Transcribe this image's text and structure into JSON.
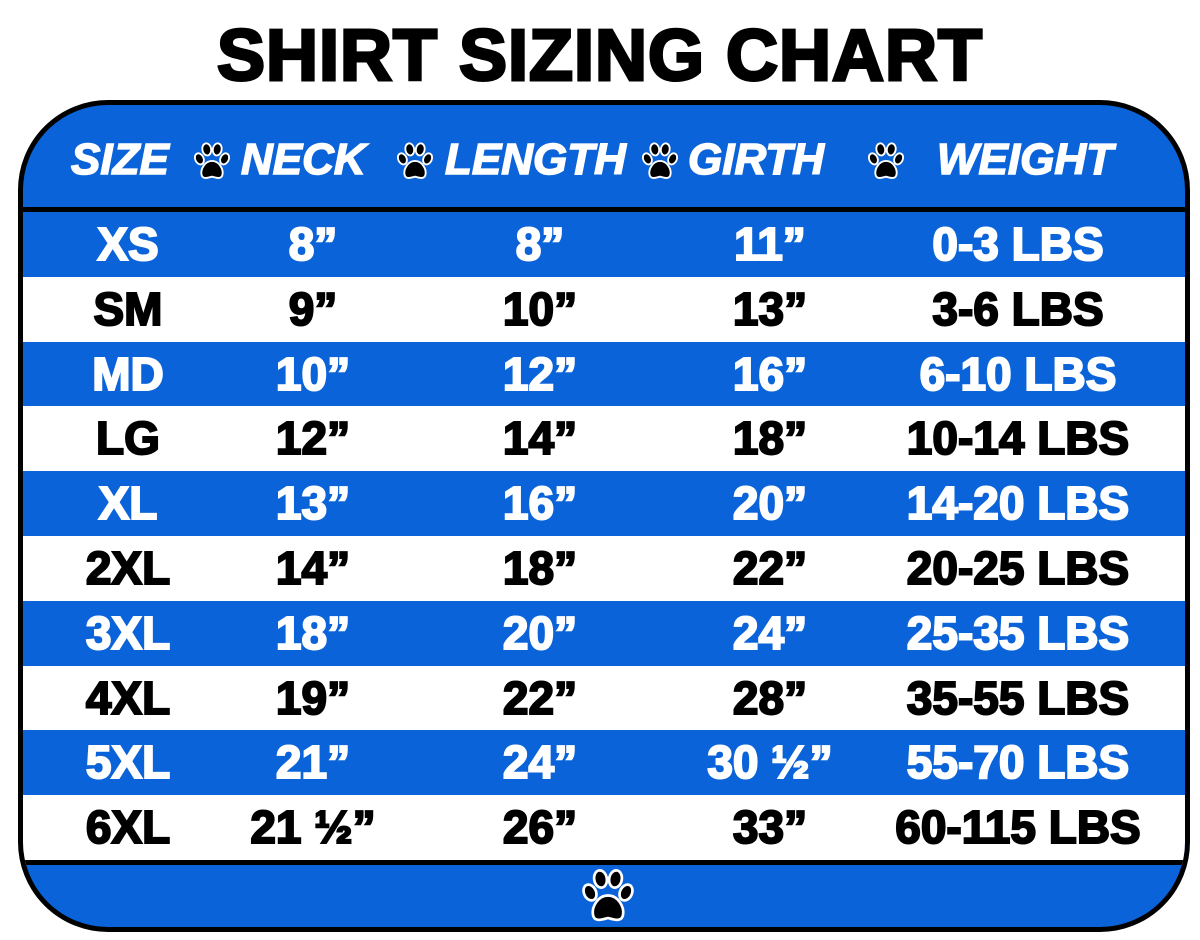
{
  "title": "SHIRT SIZING CHART",
  "colors": {
    "band": "#0a63d8",
    "text_on_band": "#ffffff",
    "text_on_white": "#000000",
    "border": "#000000"
  },
  "icons": {
    "separator": "paw-print-icon",
    "footer": "paw-print-icon"
  },
  "chart_data": {
    "type": "table",
    "title": "SHIRT SIZING CHART",
    "columns": [
      "SIZE",
      "NECK",
      "LENGTH",
      "GIRTH",
      "WEIGHT"
    ],
    "rows": [
      [
        "XS",
        "8”",
        "8”",
        "11”",
        "0-3 LBS"
      ],
      [
        "SM",
        "9”",
        "10”",
        "13”",
        "3-6 LBS"
      ],
      [
        "MD",
        "10”",
        "12”",
        "16”",
        "6-10 LBS"
      ],
      [
        "LG",
        "12”",
        "14”",
        "18”",
        "10-14 LBS"
      ],
      [
        "XL",
        "13”",
        "16”",
        "20”",
        "14-20 LBS"
      ],
      [
        "2XL",
        "14”",
        "18”",
        "22”",
        "20-25 LBS"
      ],
      [
        "3XL",
        "18”",
        "20”",
        "24”",
        "25-35 LBS"
      ],
      [
        "4XL",
        "19”",
        "22”",
        "28”",
        "35-55 LBS"
      ],
      [
        "5XL",
        "21”",
        "24”",
        "30 ½”",
        "55-70 LBS"
      ],
      [
        "6XL",
        "21 ½”",
        "26”",
        "33”",
        "60-115 LBS"
      ]
    ]
  }
}
